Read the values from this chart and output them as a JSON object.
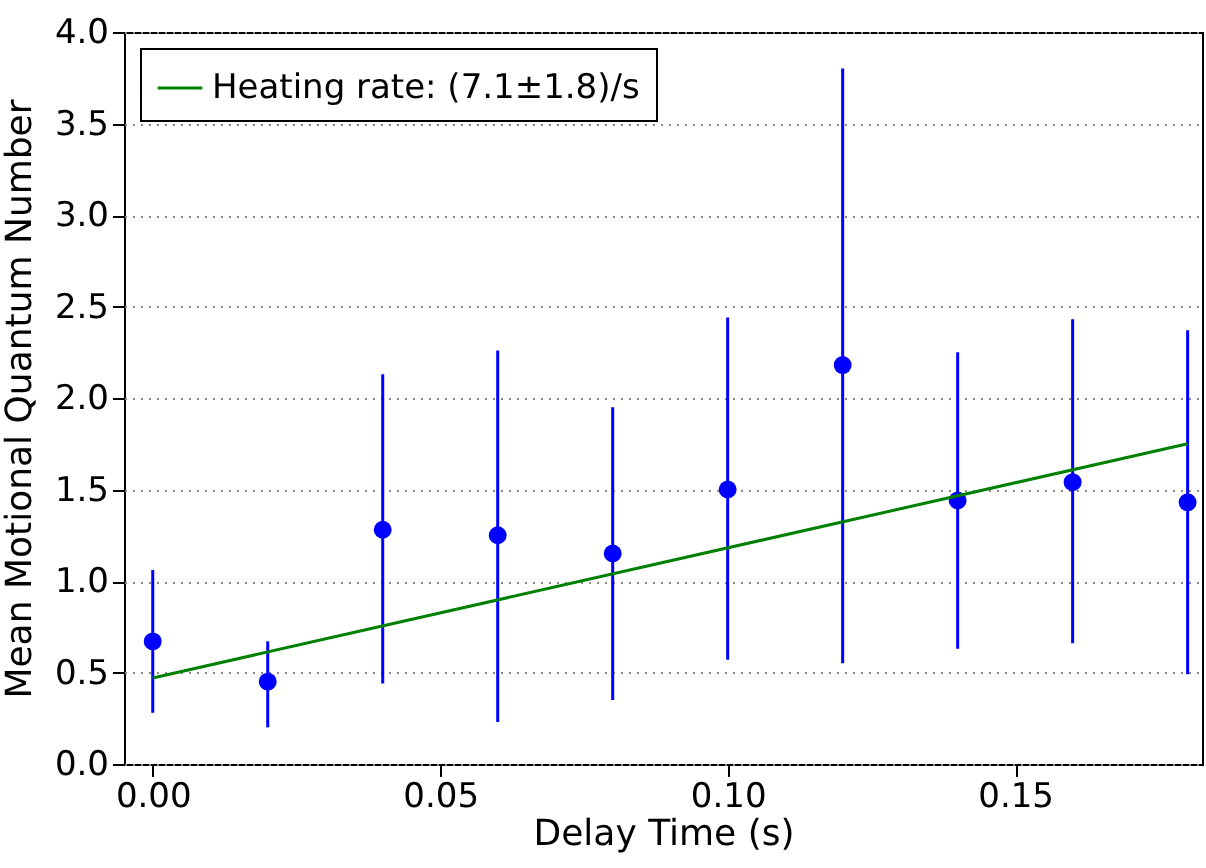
{
  "chart_data": {
    "type": "scatter",
    "xlabel": "Delay Time (s)",
    "ylabel": "Mean Motional Quantum Number",
    "x": [
      0,
      0.02,
      0.04,
      0.06,
      0.08,
      0.1,
      0.12,
      0.14,
      0.16,
      0.18
    ],
    "series": [
      {
        "type": "scatter",
        "color": "#0000ff",
        "marker": "circle",
        "values": [
          0.67,
          0.45,
          1.28,
          1.25,
          1.15,
          1.5,
          2.18,
          1.44,
          1.54,
          1.43
        ],
        "errors": [
          [
            0.28,
            1.06
          ],
          [
            0.2,
            0.67
          ],
          [
            0.44,
            2.13
          ],
          [
            0.23,
            2.26
          ],
          [
            0.35,
            1.95
          ],
          [
            0.57,
            2.44
          ],
          [
            0.55,
            3.8
          ],
          [
            0.63,
            2.25
          ],
          [
            0.66,
            2.43
          ],
          [
            0.49,
            2.37
          ]
        ]
      },
      {
        "type": "line",
        "name": "Heating rate: (7.1±1.8)/s",
        "color": "#008000",
        "line_style": "solid",
        "x": [
          0,
          0.18
        ],
        "values": [
          0.47,
          1.75
        ]
      }
    ],
    "xlim": [
      -0.005,
      0.1825
    ],
    "ylim": [
      0,
      4
    ],
    "xticks": [
      {
        "value": 0,
        "label": "0.00"
      },
      {
        "value": 0.05,
        "label": "0.05"
      },
      {
        "value": 0.1,
        "label": "0.10"
      },
      {
        "value": 0.15,
        "label": "0.15"
      }
    ],
    "yticks": [
      {
        "value": 0,
        "label": "0.0"
      },
      {
        "value": 0.5,
        "label": "0.5"
      },
      {
        "value": 1,
        "label": "1.0"
      },
      {
        "value": 1.5,
        "label": "1.5"
      },
      {
        "value": 2,
        "label": "2.0"
      },
      {
        "value": 2.5,
        "label": "2.5"
      },
      {
        "value": 3,
        "label": "3.0"
      },
      {
        "value": 3.5,
        "label": "3.5"
      },
      {
        "value": 4,
        "label": "4.0"
      }
    ],
    "grid": "y",
    "legend": "top left"
  }
}
